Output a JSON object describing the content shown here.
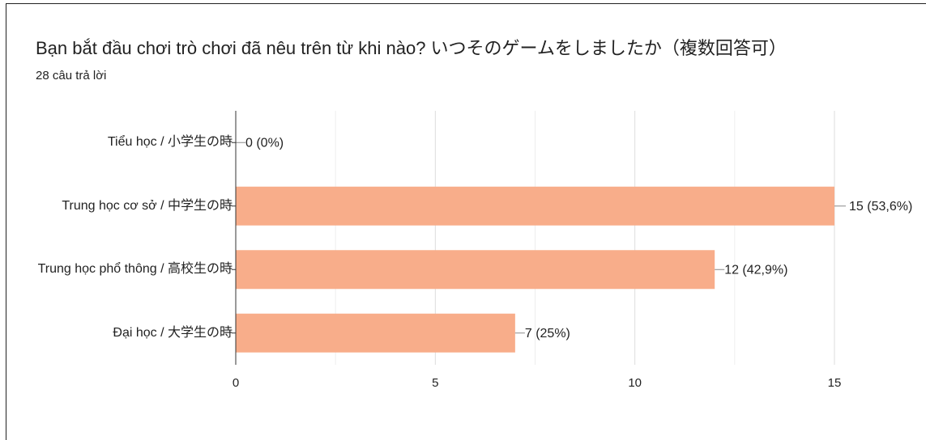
{
  "chart_data": {
    "type": "bar",
    "orientation": "horizontal",
    "title": "Bạn bắt đầu chơi trò chơi đã nêu trên từ khi nào? いつそのゲームをしましたか（複数回答可）",
    "subtitle": "28 câu trả lời",
    "categories": [
      "Tiểu học / 小学生の時",
      "Trung học cơ sở / 中学生の時",
      "Trung học phổ thông / 高校生の時",
      "Đại học / 大学生の時"
    ],
    "values": [
      0,
      15,
      12,
      7
    ],
    "value_labels": [
      "0 (0%)",
      "15 (53,6%)",
      "12 (42,9%)",
      "7 (25%)"
    ],
    "color": "#f8ad8a",
    "xlim": [
      0,
      15
    ],
    "xticks": [
      0,
      5,
      10,
      15
    ],
    "grid": true
  }
}
